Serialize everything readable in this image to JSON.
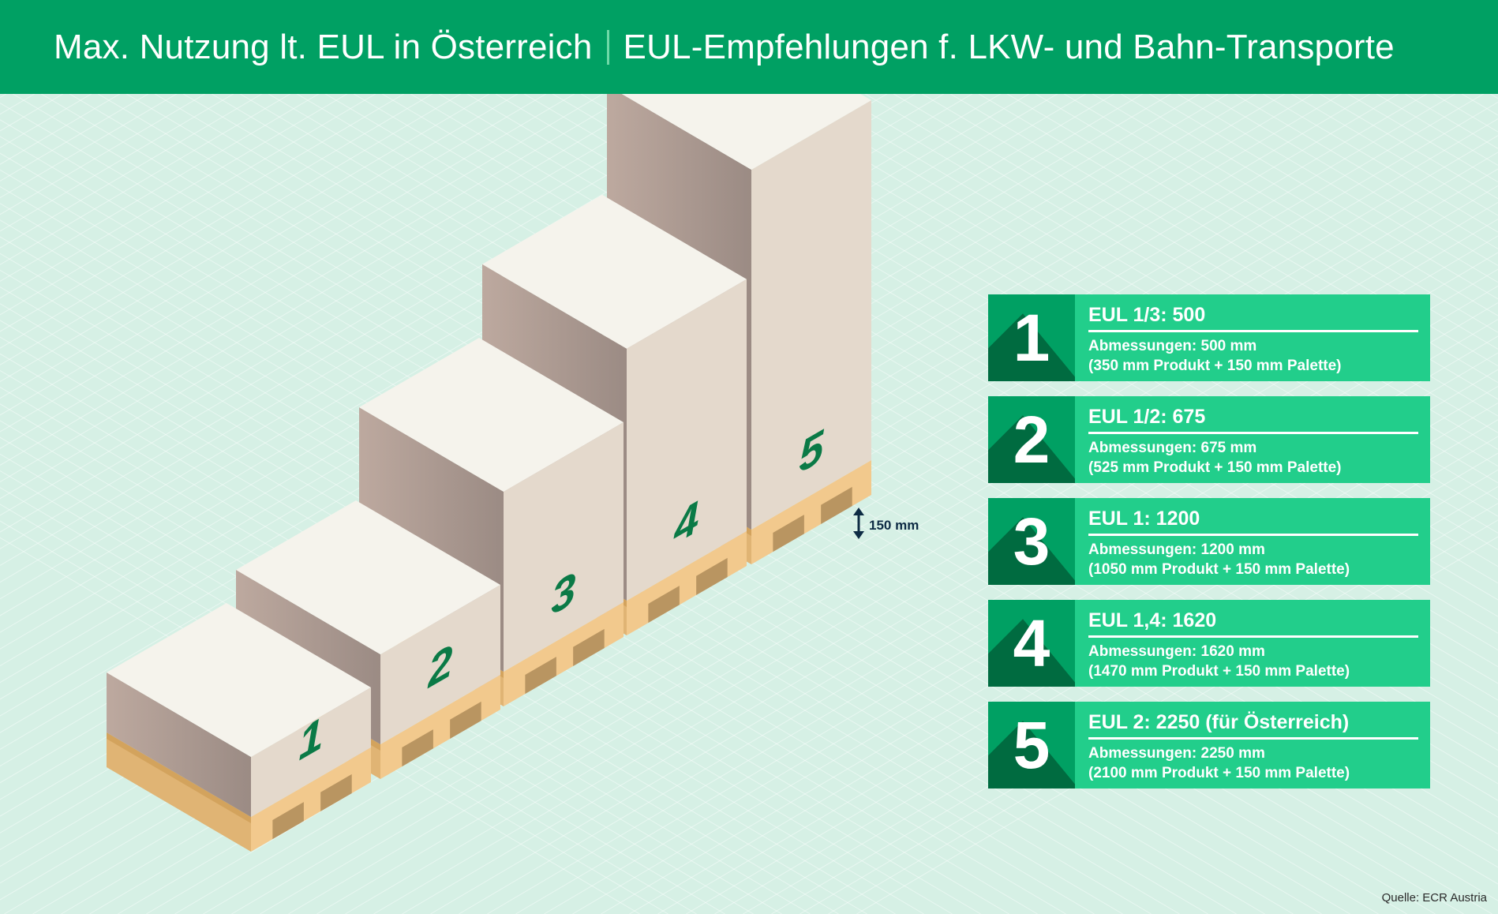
{
  "header": {
    "title_left": "Max. Nutzung lt. EUL in Österreich",
    "title_right": "EUL-Empfehlungen f. LKW- und Bahn-Transporte"
  },
  "pallets": [
    {
      "label": "1",
      "height_mm": 500
    },
    {
      "label": "2",
      "height_mm": 675
    },
    {
      "label": "3",
      "height_mm": 1200
    },
    {
      "label": "4",
      "height_mm": 1620
    },
    {
      "label": "5",
      "height_mm": 2250
    }
  ],
  "dimension_marker": {
    "label": "150 mm"
  },
  "legend": [
    {
      "number": "1",
      "title": "EUL 1/3: 500",
      "line1": "Abmessungen: 500 mm",
      "line2": "(350 mm Produkt + 150 mm Palette)"
    },
    {
      "number": "2",
      "title": "EUL 1/2: 675",
      "line1": "Abmessungen: 675 mm",
      "line2": "(525 mm Produkt + 150 mm Palette)"
    },
    {
      "number": "3",
      "title": "EUL 1: 1200",
      "line1": "Abmessungen: 1200 mm",
      "line2": "(1050 mm Produkt + 150 mm Palette)"
    },
    {
      "number": "4",
      "title": "EUL 1,4: 1620",
      "line1": "Abmessungen: 1620 mm",
      "line2": "(1470 mm Produkt + 150 mm Palette)"
    },
    {
      "number": "5",
      "title": "EUL 2: 2250 (für Österreich)",
      "line1": "Abmessungen: 2250 mm",
      "line2": "(2100 mm Produkt + 150 mm Palette)"
    }
  ],
  "source": "Quelle: ECR Austria",
  "colors": {
    "header_bg": "#00a063",
    "legend_bg": "#22ce8b",
    "number_box": "#00a063",
    "number_shadow": "#006b40",
    "box_top": "#f5f3ec",
    "box_front": "#e4d9cc",
    "box_left_dark": "#9b8b84",
    "pallet_wood": "#f2c98d",
    "box_number": "#0a7a46",
    "page_bg": "#d6f0e5"
  }
}
